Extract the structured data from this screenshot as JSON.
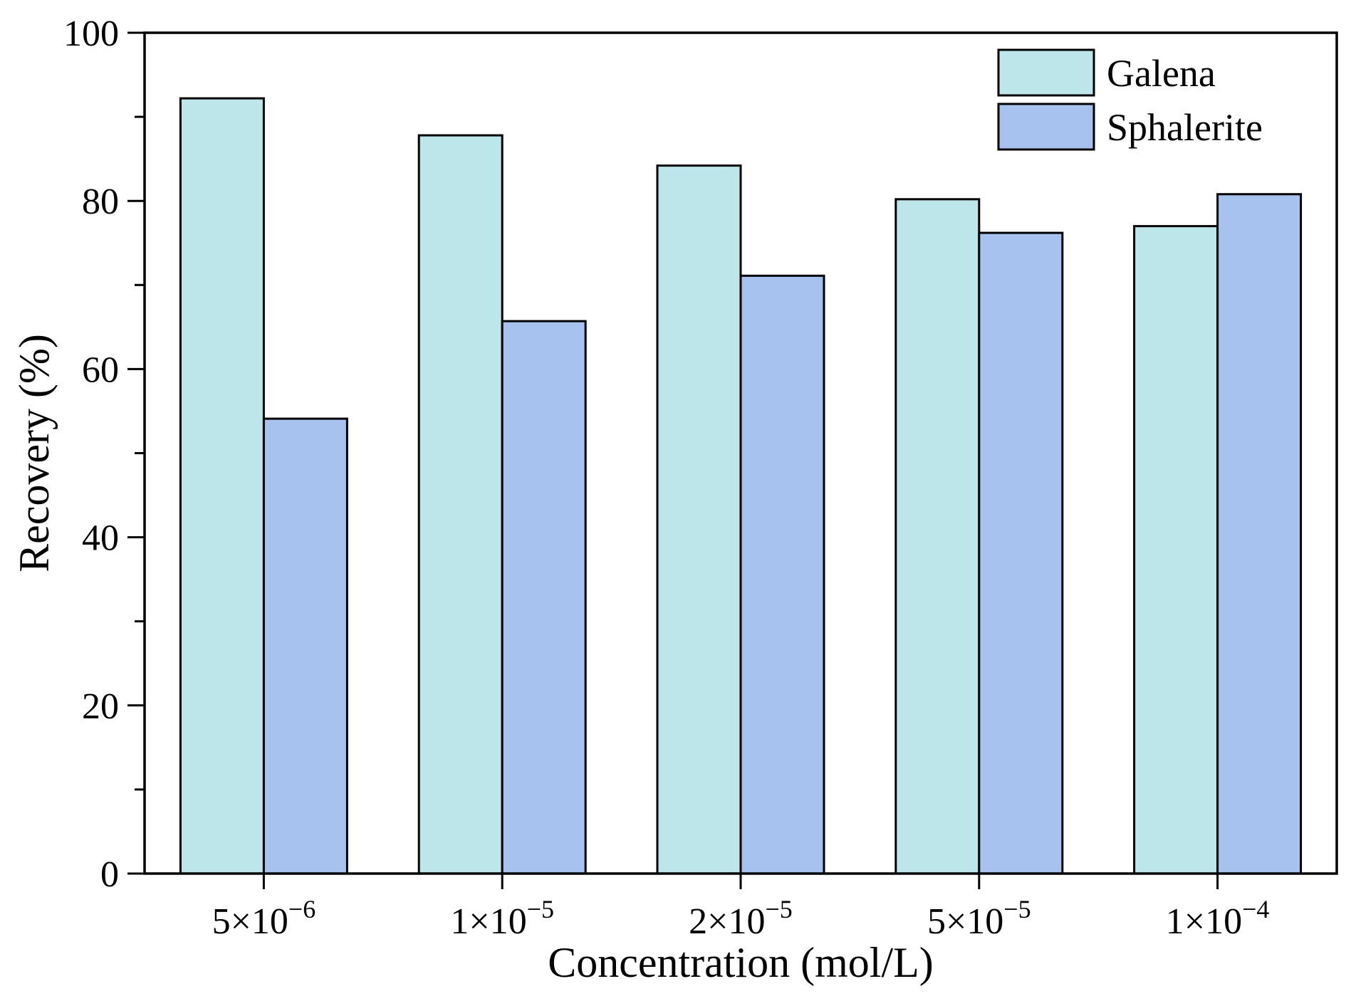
{
  "chart_data": {
    "type": "bar",
    "title": "",
    "xlabel": "Concentration (mol/L)",
    "ylabel": "Recovery (%)",
    "ylim": [
      0,
      100
    ],
    "yticks": [
      0,
      20,
      40,
      60,
      80,
      100
    ],
    "yticklabels": [
      "0",
      "20",
      "40",
      "60",
      "80",
      "100"
    ],
    "grid": false,
    "legend_position": "top-right",
    "categories": [
      {
        "base": "5×10",
        "exp": "−6"
      },
      {
        "base": "1×10",
        "exp": "−5"
      },
      {
        "base": "2×10",
        "exp": "−5"
      },
      {
        "base": "5×10",
        "exp": "−5"
      },
      {
        "base": "1×10",
        "exp": "−4"
      }
    ],
    "series": [
      {
        "name": "Galena",
        "color": "#BDE6EA",
        "values": [
          92.2,
          87.8,
          84.2,
          80.2,
          77.0
        ]
      },
      {
        "name": "Sphalerite",
        "color": "#A8C2F0",
        "values": [
          54.1,
          65.7,
          71.1,
          76.2,
          80.8
        ]
      }
    ]
  }
}
